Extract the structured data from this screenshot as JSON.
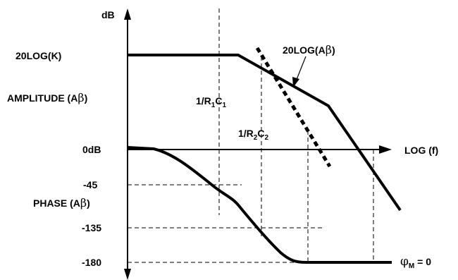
{
  "axis": {
    "y_unit": "dB",
    "x_label": "LOG (f)",
    "zero_db": "0dB"
  },
  "amplitude": {
    "gain_label": "20LOG(K)",
    "section_label_text": "AMPLITUDE (A",
    "section_label_symbol": "β",
    "section_label_close": ")",
    "loop_gain_label_text": "20LOG(A",
    "loop_gain_label_symbol": "β",
    "loop_gain_label_close": ")"
  },
  "breakpoints": {
    "first": {
      "prefix": "1/R",
      "sub1": "1",
      "mid": "C",
      "sub2": "1"
    },
    "second": {
      "prefix": "1/R",
      "sub1": "2",
      "mid": "C",
      "sub2": "2"
    }
  },
  "phase": {
    "section_label_text": "PHASE (A",
    "section_label_symbol": "β",
    "section_label_close": ")",
    "ticks": [
      "-45",
      "-135",
      "-180"
    ]
  },
  "phase_margin": {
    "symbol": "φ",
    "subscript": "M",
    "value": " = 0"
  },
  "colors": {
    "line": "#000000",
    "background": "#ffffff"
  }
}
